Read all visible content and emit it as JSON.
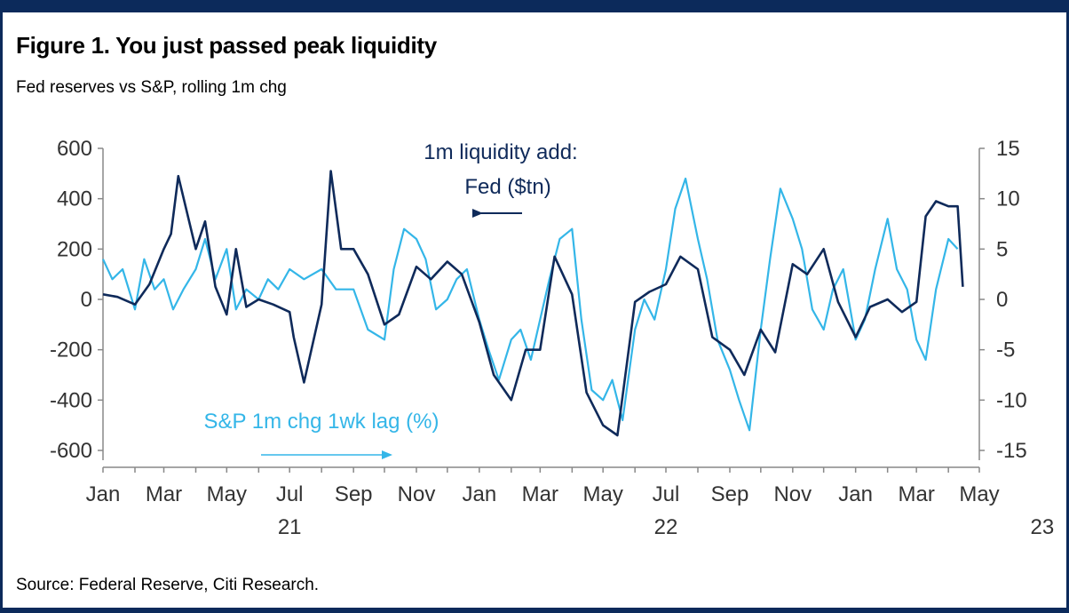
{
  "figure": {
    "title": "Figure 1. You just passed peak liquidity",
    "subtitle": "Fed reserves vs S&P, rolling 1m chg",
    "source": "Source: Federal Reserve, Citi Research."
  },
  "colors": {
    "fed": "#0f2a5a",
    "sp": "#34b6e8",
    "axis": "#888888",
    "frame": "#0c2a5b"
  },
  "chart_data": {
    "type": "line",
    "x_axis": {
      "month_labels": [
        "Jan",
        "Mar",
        "May",
        "Jul",
        "Sep",
        "Nov",
        "Jan",
        "Mar",
        "May",
        "Jul",
        "Sep",
        "Nov",
        "Jan",
        "Mar",
        "May"
      ],
      "year_labels": [
        "21",
        "22",
        "23"
      ],
      "range": [
        "2021-01",
        "2023-05"
      ]
    },
    "y_left": {
      "ticks": [
        600,
        400,
        200,
        0,
        -200,
        -400,
        -600
      ],
      "range": [
        -600,
        600
      ]
    },
    "y_right": {
      "ticks": [
        15,
        10,
        5,
        0,
        -5,
        -10,
        -15
      ],
      "range": [
        -15,
        15
      ]
    },
    "grid": false,
    "annotations": {
      "fed_line1": "1m liquidity add:",
      "fed_line2": "Fed ($tn)",
      "sp": "S&P 1m chg 1wk lag (%)"
    },
    "series": [
      {
        "axis": "left",
        "x": [
          "2021-01-01",
          "2021-01-15",
          "2021-02-01",
          "2021-02-15",
          "2021-03-01",
          "2021-03-08",
          "2021-03-15",
          "2021-04-01",
          "2021-04-10",
          "2021-04-20",
          "2021-05-01",
          "2021-05-10",
          "2021-05-20",
          "2021-06-01",
          "2021-06-15",
          "2021-07-01",
          "2021-07-05",
          "2021-07-15",
          "2021-08-01",
          "2021-08-10",
          "2021-08-20",
          "2021-09-01",
          "2021-09-15",
          "2021-10-01",
          "2021-10-15",
          "2021-11-01",
          "2021-11-15",
          "2021-12-01",
          "2021-12-15",
          "2022-01-01",
          "2022-01-15",
          "2022-02-01",
          "2022-02-15",
          "2022-03-01",
          "2022-03-15",
          "2022-04-01",
          "2022-04-15",
          "2022-05-01",
          "2022-05-15",
          "2022-06-01",
          "2022-06-15",
          "2022-07-01",
          "2022-07-15",
          "2022-08-01",
          "2022-08-15",
          "2022-09-01",
          "2022-09-15",
          "2022-10-01",
          "2022-10-15",
          "2022-11-01",
          "2022-11-15",
          "2022-12-01",
          "2022-12-15",
          "2023-01-01",
          "2023-01-15",
          "2023-02-01",
          "2023-02-15",
          "2023-03-01",
          "2023-03-10",
          "2023-03-20",
          "2023-04-01",
          "2023-04-10",
          "2023-04-15"
        ],
        "y": [
          20,
          10,
          -20,
          60,
          200,
          260,
          490,
          200,
          310,
          50,
          -60,
          200,
          -30,
          0,
          -20,
          -50,
          -150,
          -330,
          -20,
          510,
          200,
          200,
          100,
          -100,
          -60,
          130,
          80,
          150,
          100,
          -90,
          -300,
          -400,
          -200,
          -200,
          170,
          20,
          -370,
          -500,
          -540,
          -10,
          30,
          60,
          170,
          120,
          -150,
          -200,
          -300,
          -120,
          -210,
          140,
          100,
          200,
          -10,
          -150,
          -30,
          0,
          -50,
          -10,
          330,
          390,
          370,
          370,
          50
        ]
      },
      {
        "axis": "right",
        "x": [
          "2021-01-01",
          "2021-01-10",
          "2021-01-20",
          "2021-02-01",
          "2021-02-10",
          "2021-02-20",
          "2021-03-01",
          "2021-03-10",
          "2021-03-20",
          "2021-04-01",
          "2021-04-10",
          "2021-04-20",
          "2021-05-01",
          "2021-05-10",
          "2021-05-20",
          "2021-06-01",
          "2021-06-10",
          "2021-06-20",
          "2021-07-01",
          "2021-07-15",
          "2021-08-01",
          "2021-08-15",
          "2021-09-01",
          "2021-09-15",
          "2021-10-01",
          "2021-10-10",
          "2021-10-20",
          "2021-11-01",
          "2021-11-10",
          "2021-11-20",
          "2021-12-01",
          "2021-12-10",
          "2021-12-20",
          "2022-01-01",
          "2022-01-10",
          "2022-01-20",
          "2022-02-01",
          "2022-02-10",
          "2022-02-20",
          "2022-03-01",
          "2022-03-10",
          "2022-03-20",
          "2022-04-01",
          "2022-04-10",
          "2022-04-20",
          "2022-05-01",
          "2022-05-10",
          "2022-05-20",
          "2022-06-01",
          "2022-06-10",
          "2022-06-20",
          "2022-07-01",
          "2022-07-10",
          "2022-07-20",
          "2022-08-01",
          "2022-08-10",
          "2022-08-20",
          "2022-09-01",
          "2022-09-10",
          "2022-09-20",
          "2022-10-01",
          "2022-10-10",
          "2022-10-20",
          "2022-11-01",
          "2022-11-10",
          "2022-11-20",
          "2022-12-01",
          "2022-12-10",
          "2022-12-20",
          "2023-01-01",
          "2023-01-10",
          "2023-01-20",
          "2023-02-01",
          "2023-02-10",
          "2023-02-20",
          "2023-03-01",
          "2023-03-10",
          "2023-03-20",
          "2023-04-01",
          "2023-04-10"
        ],
        "y": [
          4,
          2,
          3,
          -1,
          4,
          1,
          2,
          -1,
          1,
          3,
          6,
          2,
          5,
          -1,
          1,
          0,
          2,
          1,
          3,
          2,
          3,
          1,
          1,
          -3,
          -4,
          3,
          7,
          6,
          4,
          -1,
          0,
          2,
          3,
          -2,
          -5,
          -8,
          -4,
          -3,
          -6,
          -2,
          2,
          6,
          7,
          -2,
          -9,
          -10,
          -8,
          -12,
          -3,
          0,
          -2,
          3,
          9,
          12,
          6,
          2,
          -4,
          -7,
          -10,
          -13,
          -3,
          4,
          11,
          8,
          5,
          -1,
          -3,
          1,
          3,
          -4,
          -2,
          3,
          8,
          3,
          1,
          -4,
          -6,
          1,
          6,
          5
        ]
      }
    ]
  }
}
